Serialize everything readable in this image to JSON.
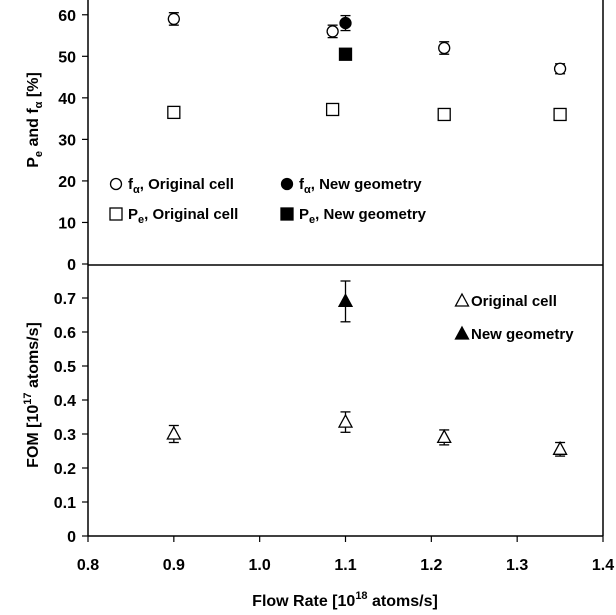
{
  "chart_data": [
    {
      "type": "scatter",
      "title": "",
      "xlabel": "Flow Rate [10^18 atoms/s]",
      "ylabel": "Pe and fα [%]",
      "xlim": [
        0.8,
        1.4
      ],
      "ylim": [
        0,
        65
      ],
      "yticks": [
        0,
        10,
        20,
        30,
        40,
        50,
        60
      ],
      "series": [
        {
          "name": "fα, Original cell",
          "marker": "circle-open",
          "points": [
            {
              "x": 0.9,
              "y": 59,
              "err": 1.5
            },
            {
              "x": 1.085,
              "y": 56,
              "err": 1.5
            },
            {
              "x": 1.215,
              "y": 52,
              "err": 1.5
            },
            {
              "x": 1.35,
              "y": 47,
              "err": 1.2
            }
          ]
        },
        {
          "name": "fα, New geometry",
          "marker": "circle-filled",
          "points": [
            {
              "x": 1.1,
              "y": 58,
              "err": 1.8
            }
          ]
        },
        {
          "name": "Pe, Original cell",
          "marker": "square-open",
          "points": [
            {
              "x": 0.9,
              "y": 36.5,
              "err": 0
            },
            {
              "x": 1.085,
              "y": 37.2,
              "err": 0
            },
            {
              "x": 1.215,
              "y": 36,
              "err": 0
            },
            {
              "x": 1.35,
              "y": 36,
              "err": 0
            }
          ]
        },
        {
          "name": "Pe, New geometry",
          "marker": "square-filled",
          "points": [
            {
              "x": 1.1,
              "y": 50.5,
              "err": 0
            }
          ]
        }
      ],
      "legend": {
        "placement": "bottom-left",
        "label_parts": [
          {
            "main": "f",
            "sub": "α",
            "rest": ", Original cell"
          },
          {
            "main": "f",
            "sub": "α",
            "rest": ", New geometry"
          },
          {
            "main": "P",
            "sub": "e",
            "rest": ", Original cell"
          },
          {
            "main": "P",
            "sub": "e",
            "rest": ", New geometry"
          }
        ]
      },
      "ylabel_parts": {
        "p": "P",
        "p_sub": "e",
        "and": " and f",
        "f_sub": "α",
        "unit": "  [%]"
      }
    },
    {
      "type": "scatter",
      "title": "",
      "xlabel": "Flow Rate [10^18 atoms/s]",
      "ylabel": "FOM [10^17 atoms/s]",
      "xlim": [
        0.8,
        1.4
      ],
      "ylim": [
        0,
        0.75
      ],
      "yticks": [
        0,
        0.1,
        0.2,
        0.3,
        0.4,
        0.5,
        0.6,
        0.7
      ],
      "xticks": [
        0.8,
        0.9,
        1.0,
        1.1,
        1.2,
        1.3,
        1.4
      ],
      "series": [
        {
          "name": "Original cell",
          "marker": "triangle-open",
          "points": [
            {
              "x": 0.9,
              "y": 0.3,
              "err": 0.025
            },
            {
              "x": 1.1,
              "y": 0.335,
              "err": 0.03
            },
            {
              "x": 1.215,
              "y": 0.29,
              "err": 0.022
            },
            {
              "x": 1.35,
              "y": 0.255,
              "err": 0.02
            }
          ]
        },
        {
          "name": "New geometry",
          "marker": "triangle-filled",
          "points": [
            {
              "x": 1.1,
              "y": 0.69,
              "err": 0.06
            }
          ]
        }
      ],
      "legend": {
        "placement": "top-right"
      },
      "ylabel_parts": {
        "main": "FOM [10",
        "sup": "17",
        "rest": " atoms/s]"
      }
    }
  ],
  "xlabel_parts": {
    "main": "Flow Rate [10",
    "sup": "18",
    "rest": " atoms/s]"
  }
}
